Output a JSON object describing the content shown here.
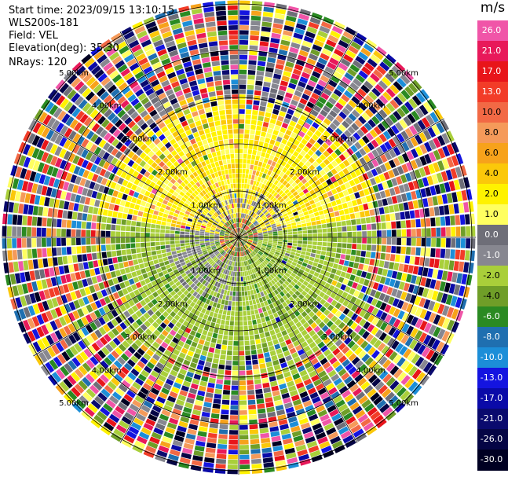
{
  "header": {
    "start_time": "Start time: 2023/09/15 13:10:15",
    "instrument": "WLS200s-181",
    "field": "Field: VEL",
    "elevation": "Elevation(deg): 35.30",
    "nrays": "NRays: 120"
  },
  "colorbar": {
    "unit": "m/s",
    "levels": [
      {
        "label": "26.0",
        "color": "#f055a8"
      },
      {
        "label": "21.0",
        "color": "#e8195a"
      },
      {
        "label": "17.0",
        "color": "#e8151a"
      },
      {
        "label": "13.0",
        "color": "#f23c28"
      },
      {
        "label": "10.0",
        "color": "#f26945"
      },
      {
        "label": "8.0",
        "color": "#f59a5a"
      },
      {
        "label": "6.0",
        "color": "#f7a21b"
      },
      {
        "label": "4.0",
        "color": "#fbc80a"
      },
      {
        "label": "2.0",
        "color": "#fff200"
      },
      {
        "label": "1.0",
        "color": "#ffff60"
      },
      {
        "label": "0.0",
        "color": "#6e6e78"
      },
      {
        "label": "-1.0",
        "color": "#878790"
      },
      {
        "label": "-2.0",
        "color": "#a9cf3a"
      },
      {
        "label": "-4.0",
        "color": "#6f9e28"
      },
      {
        "label": "-6.0",
        "color": "#2a8a22"
      },
      {
        "label": "-8.0",
        "color": "#1f6fb0"
      },
      {
        "label": "-10.0",
        "color": "#1c8ed8"
      },
      {
        "label": "-13.0",
        "color": "#1414e0"
      },
      {
        "label": "-17.0",
        "color": "#0a0aa8"
      },
      {
        "label": "-21.0",
        "color": "#0a0a6e"
      },
      {
        "label": "-26.0",
        "color": "#050545"
      },
      {
        "label": "-30.0",
        "color": "#000022"
      }
    ]
  },
  "chart_data": {
    "type": "heatmap",
    "projection": "polar",
    "field": "VEL",
    "units": "m/s",
    "n_rays": 120,
    "ring_labels": [
      "1.00km",
      "2.00km",
      "3.00km",
      "4.00km",
      "5.00km"
    ],
    "azimuth_spokes_deg": [
      0,
      30,
      60,
      90,
      120,
      150
    ],
    "pattern": "near-field yellow (positive ~1-2 m/s) to the north, green (negative ~-2 to -4 m/s) to the south, noisy multi-color far field"
  }
}
